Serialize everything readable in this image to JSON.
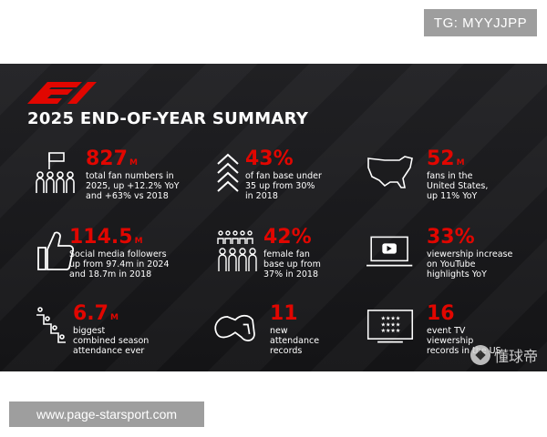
{
  "watermark_top": "TG: MYYJJPP",
  "watermark_bottom": "www.page-starsport.com",
  "banner": {
    "headline": "2025 END-OF-YEAR SUMMARY",
    "accent_color": "#e10600",
    "stats": [
      {
        "icon": "fans-flag-icon",
        "value": "827",
        "unit": "M",
        "desc": "total fan numbers in\n2025, up +12.2% YoY\nand +63% vs 2018"
      },
      {
        "icon": "chevrons-up-icon",
        "value": "43%",
        "unit": "",
        "desc": "of fan base under\n35 up from 30%\nin 2018"
      },
      {
        "icon": "usa-map-icon",
        "value": "52",
        "unit": "M",
        "desc": "fans in the\nUnited States,\nup 11% YoY"
      },
      {
        "icon": "thumbs-up-icon",
        "value": "114.5",
        "unit": "M",
        "desc": "Social media followers\nup from 97.4m in 2024\nand 18.7m in 2018"
      },
      {
        "icon": "crowd-icon",
        "value": "42%",
        "unit": "",
        "desc": "female fan\nbase up from\n37% in 2018"
      },
      {
        "icon": "youtube-laptop-icon",
        "value": "33%",
        "unit": "",
        "desc": "viewership increase\non YouTube\nhighlights YoY"
      },
      {
        "icon": "stairs-crowd-icon",
        "value": "6.7",
        "unit": "M",
        "desc": "biggest\ncombined season\nattendance ever"
      },
      {
        "icon": "race-track-icon",
        "value": "11",
        "unit": "",
        "desc": "new\nattendance\nrecords"
      },
      {
        "icon": "tv-stars-icon",
        "value": "16",
        "unit": "",
        "desc": "event TV\nviewership\nrecords in the US"
      }
    ],
    "corner_watermark": "懂球帝"
  }
}
